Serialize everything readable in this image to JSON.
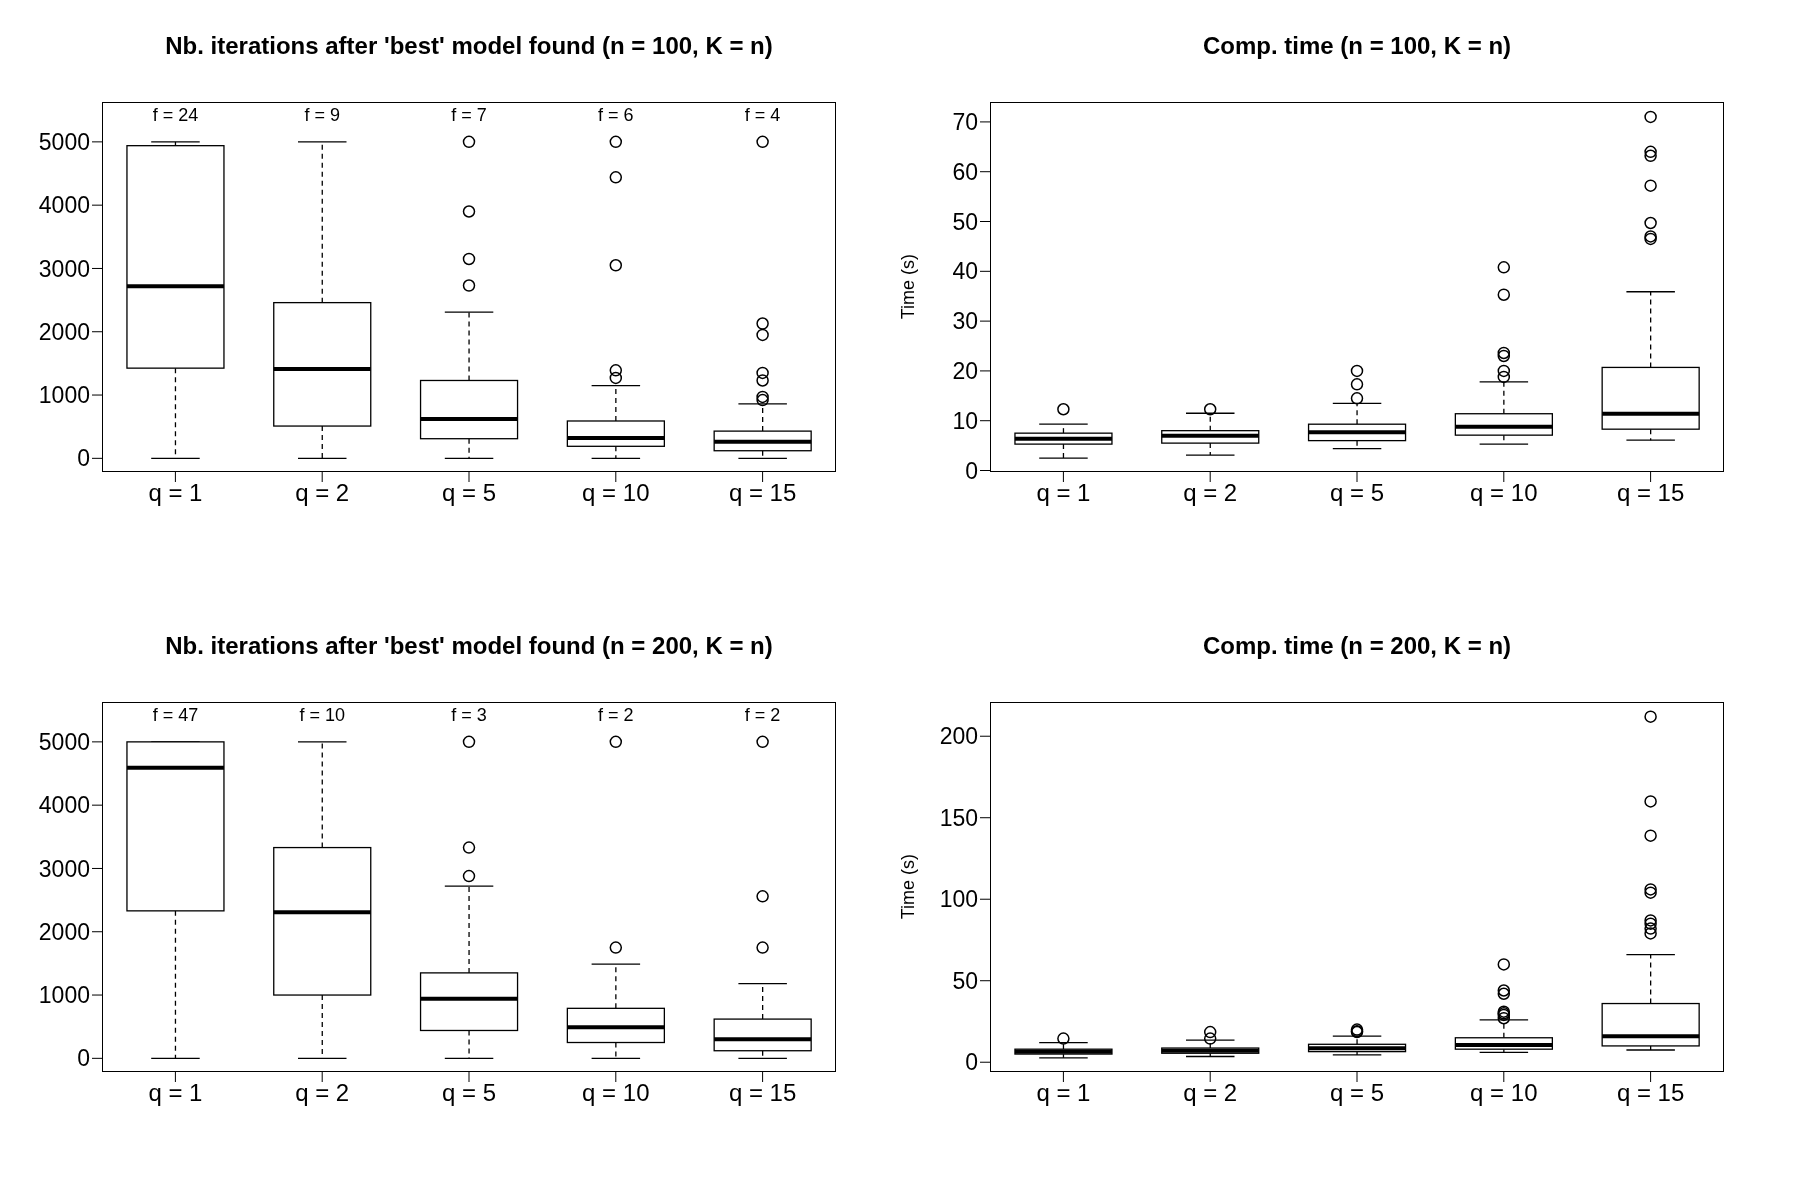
{
  "chart_data": [
    {
      "type": "box",
      "title": "Nb. iterations after 'best' model found (n = 100, K = n)",
      "categories": [
        "q = 1",
        "q = 2",
        "q = 5",
        "q = 10",
        "q = 15"
      ],
      "ylim": [
        -216,
        5630
      ],
      "yticks": [
        0,
        1000,
        2000,
        3000,
        4000,
        5000
      ],
      "boxes": [
        {
          "low": 0,
          "q1": 1425,
          "median": 2720,
          "q3": 4940,
          "high": 5000
        },
        {
          "low": 0,
          "q1": 510,
          "median": 1410,
          "q3": 2460,
          "high": 5000
        },
        {
          "low": 0,
          "q1": 310,
          "median": 620,
          "q3": 1230,
          "high": 2310,
          "outliers": [
            5000,
            3900,
            3150,
            2730
          ]
        },
        {
          "low": 0,
          "q1": 190,
          "median": 320,
          "q3": 590,
          "high": 1150,
          "outliers": [
            5000,
            4440,
            3050,
            1390,
            1270
          ]
        },
        {
          "low": 0,
          "q1": 120,
          "median": 260,
          "q3": 430,
          "high": 860,
          "outliers": [
            5000,
            2130,
            1950,
            1350,
            1230,
            970,
            920
          ]
        }
      ],
      "annotations": [
        "f = 24",
        "f = 9",
        "f = 7",
        "f = 6",
        "f = 4"
      ]
    },
    {
      "type": "box",
      "title": "Comp. time (n = 100, K = n)",
      "ylabel": "Time (s)",
      "categories": [
        "q = 1",
        "q = 2",
        "q = 5",
        "q = 10",
        "q = 15"
      ],
      "ylim": [
        -0.3,
        74
      ],
      "yticks": [
        0,
        10,
        20,
        30,
        40,
        50,
        60,
        70
      ],
      "boxes": [
        {
          "low": 2.5,
          "q1": 5.3,
          "median": 6.4,
          "q3": 7.5,
          "high": 9.3,
          "outliers": [
            12.3
          ]
        },
        {
          "low": 3.1,
          "q1": 5.5,
          "median": 7.0,
          "q3": 8.0,
          "high": 11.5,
          "outliers": [
            12.3
          ]
        },
        {
          "low": 4.4,
          "q1": 6.0,
          "median": 7.7,
          "q3": 9.3,
          "high": 13.5,
          "outliers": [
            20.0,
            17.3,
            14.5
          ]
        },
        {
          "low": 5.3,
          "q1": 7.1,
          "median": 8.8,
          "q3": 11.4,
          "high": 17.8,
          "outliers": [
            40.8,
            35.3,
            23.6,
            23.0,
            20.0,
            18.8
          ]
        },
        {
          "low": 6.1,
          "q1": 8.3,
          "median": 11.4,
          "q3": 20.7,
          "high": 35.9,
          "outliers": [
            71,
            64,
            63.2,
            57.2,
            49.7,
            47,
            46.5
          ]
        }
      ]
    },
    {
      "type": "box",
      "title": "Nb. iterations after 'best' model found (n = 200, K = n)",
      "categories": [
        "q = 1",
        "q = 2",
        "q = 5",
        "q = 10",
        "q = 15"
      ],
      "ylim": [
        -216,
        5630
      ],
      "yticks": [
        0,
        1000,
        2000,
        3000,
        4000,
        5000
      ],
      "boxes": [
        {
          "low": 0,
          "q1": 2330,
          "median": 4590,
          "q3": 5000,
          "high": 5000
        },
        {
          "low": 0,
          "q1": 1000,
          "median": 2310,
          "q3": 3330,
          "high": 5000
        },
        {
          "low": 0,
          "q1": 440,
          "median": 940,
          "q3": 1350,
          "high": 2720,
          "outliers": [
            5000,
            3330,
            2880
          ]
        },
        {
          "low": 0,
          "q1": 250,
          "median": 490,
          "q3": 790,
          "high": 1490,
          "outliers": [
            5000,
            1750
          ]
        },
        {
          "low": 0,
          "q1": 120,
          "median": 300,
          "q3": 620,
          "high": 1180,
          "outliers": [
            5000,
            2560,
            1750
          ]
        }
      ],
      "annotations": [
        "f = 47",
        "f = 10",
        "f = 3",
        "f = 2",
        "f = 2"
      ]
    },
    {
      "type": "box",
      "title": "Comp. time (n = 200, K = n)",
      "ylabel": "Time (s)",
      "categories": [
        "q = 1",
        "q = 2",
        "q = 5",
        "q = 10",
        "q = 15"
      ],
      "ylim": [
        -6,
        221
      ],
      "yticks": [
        0,
        50,
        100,
        150,
        200
      ],
      "boxes": [
        {
          "low": 2.7,
          "q1": 5,
          "median": 6.5,
          "q3": 8,
          "high": 12,
          "outliers": [
            14.5
          ]
        },
        {
          "low": 3.5,
          "q1": 5.5,
          "median": 7,
          "q3": 8.7,
          "high": 13.5,
          "outliers": [
            18.5,
            14.5
          ]
        },
        {
          "low": 4.5,
          "q1": 6.5,
          "median": 8.5,
          "q3": 11,
          "high": 16,
          "outliers": [
            20,
            19,
            18.5
          ]
        },
        {
          "low": 6,
          "q1": 8,
          "median": 10.5,
          "q3": 15,
          "high": 26,
          "outliers": [
            60,
            44,
            42,
            31,
            30,
            29,
            27
          ]
        },
        {
          "low": 7.5,
          "q1": 10,
          "median": 16,
          "q3": 36,
          "high": 66,
          "outliers": [
            212,
            160,
            139,
            106,
            104,
            87,
            85,
            82,
            79
          ]
        }
      ]
    }
  ]
}
